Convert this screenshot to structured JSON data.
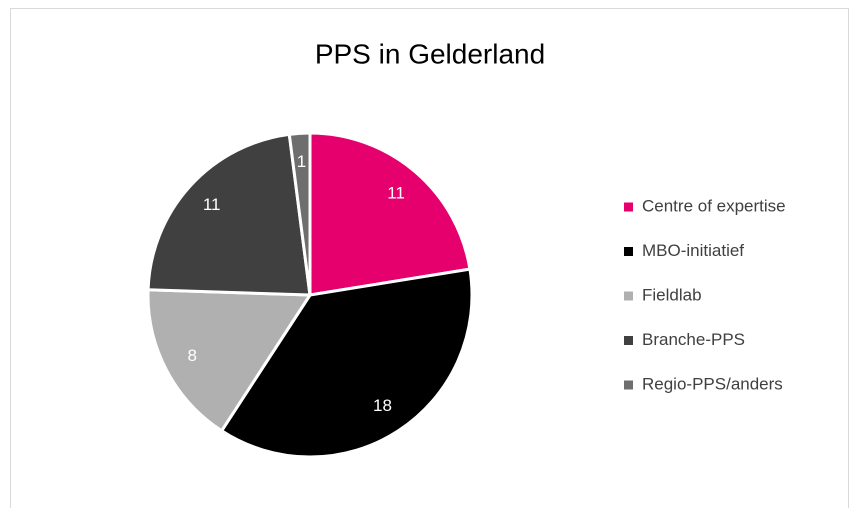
{
  "chart_data": {
    "type": "pie",
    "title": "PPS in Gelderland",
    "categories": [
      "Centre of expertise",
      "MBO-initiatief",
      "Fieldlab",
      "Branche-PPS",
      "Regio-PPS/anders"
    ],
    "values": [
      11,
      18,
      8,
      11,
      1
    ],
    "colors": [
      "#e5006d",
      "#000000",
      "#b0b0b0",
      "#404040",
      "#6e6e6e"
    ],
    "legend": "right"
  }
}
